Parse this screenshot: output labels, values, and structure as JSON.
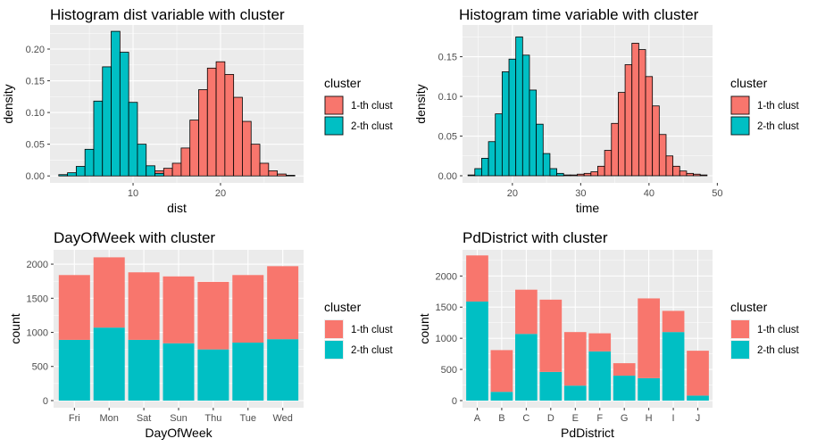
{
  "colors": {
    "panel_bg": "#EBEBEB",
    "grid_major": "#FFFFFF",
    "cluster1": "#F8766D",
    "cluster2": "#00BFC4",
    "axis_text": "#4D4D4D",
    "text": "#000000"
  },
  "chart_data": [
    {
      "id": "dist",
      "type": "histogram",
      "title": "Histogram dist variable with cluster",
      "xlabel": "dist",
      "ylabel": "density",
      "xlim": [
        0.5,
        29.5
      ],
      "ylim": [
        -0.011,
        0.238
      ],
      "xticks": [
        10,
        20
      ],
      "xtick_labels": [
        "10",
        "20"
      ],
      "xminor": [
        5,
        15,
        25
      ],
      "yticks": [
        0,
        0.05,
        0.1,
        0.15,
        0.2
      ],
      "ytick_labels": [
        "0.00",
        "0.05",
        "0.10",
        "0.15",
        "0.20"
      ],
      "yminor": [
        0.025,
        0.075,
        0.125,
        0.175,
        0.225
      ],
      "binwidth": 1,
      "legend": {
        "title": "cluster",
        "position": "right",
        "labels": [
          "1-th clust",
          "2-th clust"
        ]
      },
      "series": [
        {
          "name": "1-th clust",
          "color_key": "cluster1",
          "x": [
            11,
            12,
            13,
            14,
            15,
            16,
            17,
            18,
            19,
            20,
            21,
            22,
            23,
            24,
            25,
            26,
            27,
            28
          ],
          "values": [
            0.002,
            0.005,
            0.008,
            0.012,
            0.02,
            0.044,
            0.088,
            0.136,
            0.17,
            0.18,
            0.16,
            0.124,
            0.086,
            0.05,
            0.02,
            0.008,
            0.003,
            0.001
          ]
        },
        {
          "name": "2-th clust",
          "color_key": "cluster2",
          "x": [
            2,
            3,
            4,
            5,
            6,
            7,
            8,
            9,
            10,
            11,
            12,
            13
          ],
          "values": [
            0.002,
            0.005,
            0.015,
            0.042,
            0.118,
            0.172,
            0.228,
            0.195,
            0.116,
            0.05,
            0.016,
            0.004
          ]
        }
      ]
    },
    {
      "id": "time",
      "type": "histogram",
      "title": "Histogram time variable with cluster",
      "xlabel": "time",
      "ylabel": "density",
      "xlim": [
        12.7,
        49.3
      ],
      "ylim": [
        -0.009,
        0.19
      ],
      "xticks": [
        20,
        30,
        40,
        50
      ],
      "xtick_labels": [
        "20",
        "30",
        "40",
        "50"
      ],
      "xminor": [
        15,
        25,
        35,
        45
      ],
      "yticks": [
        0,
        0.05,
        0.1,
        0.15
      ],
      "ytick_labels": [
        "0.00",
        "0.05",
        "0.10",
        "0.15"
      ],
      "yminor": [
        0.025,
        0.075,
        0.125,
        0.175
      ],
      "binwidth": 1,
      "legend": {
        "title": "cluster",
        "position": "right",
        "labels": [
          "1-th clust",
          "2-th clust"
        ]
      },
      "series": [
        {
          "name": "1-th clust",
          "color_key": "cluster1",
          "x": [
            26,
            27,
            28,
            29,
            30,
            31,
            32,
            33,
            34,
            35,
            36,
            37,
            38,
            39,
            40,
            41,
            42,
            43,
            44,
            45,
            46,
            47,
            48
          ],
          "values": [
            0.001,
            0.001,
            0.001,
            0.001,
            0.002,
            0.003,
            0.005,
            0.012,
            0.032,
            0.066,
            0.105,
            0.14,
            0.167,
            0.159,
            0.125,
            0.088,
            0.052,
            0.025,
            0.012,
            0.006,
            0.003,
            0.002,
            0.001
          ]
        },
        {
          "name": "2-th clust",
          "color_key": "cluster2",
          "x": [
            14,
            15,
            16,
            17,
            18,
            19,
            20,
            21,
            22,
            23,
            24,
            25,
            26,
            27
          ],
          "values": [
            0.001,
            0.009,
            0.022,
            0.043,
            0.078,
            0.131,
            0.147,
            0.175,
            0.152,
            0.108,
            0.065,
            0.028,
            0.009,
            0.003
          ]
        }
      ]
    },
    {
      "id": "dow",
      "type": "bar",
      "stacked": true,
      "title": "DayOfWeek with cluster",
      "xlabel": "DayOfWeek",
      "ylabel": "count",
      "categories": [
        "Fri",
        "Mon",
        "Sat",
        "Sun",
        "Thu",
        "Tue",
        "Wed"
      ],
      "ylim": [
        -105,
        2210
      ],
      "yticks": [
        0,
        500,
        1000,
        1500,
        2000
      ],
      "ytick_labels": [
        "0",
        "500",
        "1000",
        "1500",
        "2000"
      ],
      "yminor": [
        250,
        750,
        1250,
        1750
      ],
      "legend": {
        "title": "cluster",
        "position": "right",
        "labels": [
          "1-th clust",
          "2-th clust"
        ]
      },
      "series": [
        {
          "name": "1-th clust",
          "color_key": "cluster1",
          "values": [
            950,
            1030,
            990,
            980,
            990,
            990,
            1070
          ]
        },
        {
          "name": "2-th clust",
          "color_key": "cluster2",
          "values": [
            890,
            1070,
            890,
            840,
            750,
            850,
            900
          ]
        }
      ]
    },
    {
      "id": "pd",
      "type": "bar",
      "stacked": true,
      "title": "PdDistrict with cluster",
      "xlabel": "PdDistrict",
      "ylabel": "count",
      "categories": [
        "A",
        "B",
        "C",
        "D",
        "E",
        "F",
        "G",
        "H",
        "I",
        "J"
      ],
      "ylim": [
        -115,
        2420
      ],
      "yticks": [
        0,
        500,
        1000,
        1500,
        2000
      ],
      "ytick_labels": [
        "0",
        "500",
        "1000",
        "1500",
        "2000"
      ],
      "yminor": [
        250,
        750,
        1250,
        1750,
        2250
      ],
      "legend": {
        "title": "cluster",
        "position": "right",
        "labels": [
          "1-th clust",
          "2-th clust"
        ]
      },
      "series": [
        {
          "name": "1-th clust",
          "color_key": "cluster1",
          "values": [
            740,
            670,
            710,
            1160,
            860,
            290,
            200,
            1280,
            340,
            720
          ]
        },
        {
          "name": "2-th clust",
          "color_key": "cluster2",
          "values": [
            1590,
            140,
            1070,
            460,
            240,
            790,
            400,
            360,
            1100,
            80
          ]
        }
      ]
    }
  ]
}
